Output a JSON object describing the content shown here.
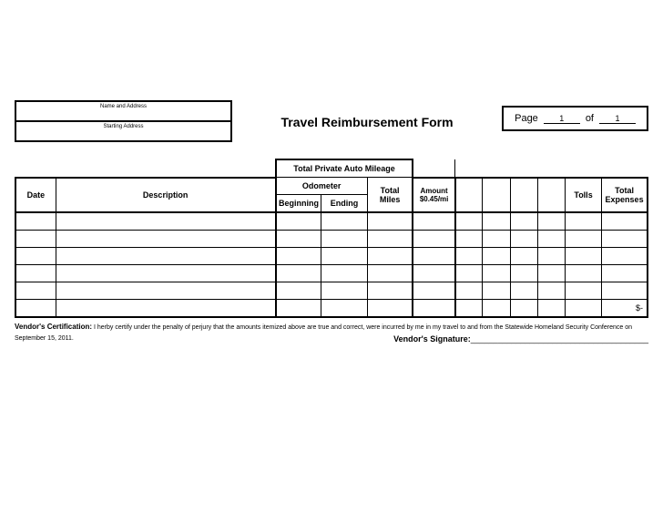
{
  "header": {
    "name_address_label": "Name and Address",
    "starting_address_label": "Starting Address",
    "title": "Travel Reimbursement Form",
    "page_label": "Page",
    "page_current": "1",
    "page_of": "of",
    "page_total": "1"
  },
  "table": {
    "mileage_header": "Total Private Auto Mileage",
    "odometer_label": "Odometer",
    "date_label": "Date",
    "description_label": "Description",
    "beginning_label": "Beginning",
    "ending_label": "Ending",
    "total_miles_label": "Total Miles",
    "amount_label": "Amount $0.45/mi",
    "tolls_label": "Tolls",
    "total_expenses_label": "Total Expenses",
    "last_total": "$-"
  },
  "cert": {
    "bold": "Vendor's Certification:",
    "text": " I herby certify under the penalty of perjury that the amounts itemized above are true and correct, were incurred by me in my travel to and from the Statewide Homeland Security Conference on September 15, 2011.",
    "sig_label": "Vendor's Signature:",
    "sig_line": "_______________________________________"
  },
  "style": {
    "border_color": "#000000",
    "background_color": "#ffffff",
    "title_fontsize": 14,
    "header_label_fontsize": 6,
    "table_fontsize": 9,
    "cert_fontsize": 7,
    "num_data_rows": 6
  }
}
